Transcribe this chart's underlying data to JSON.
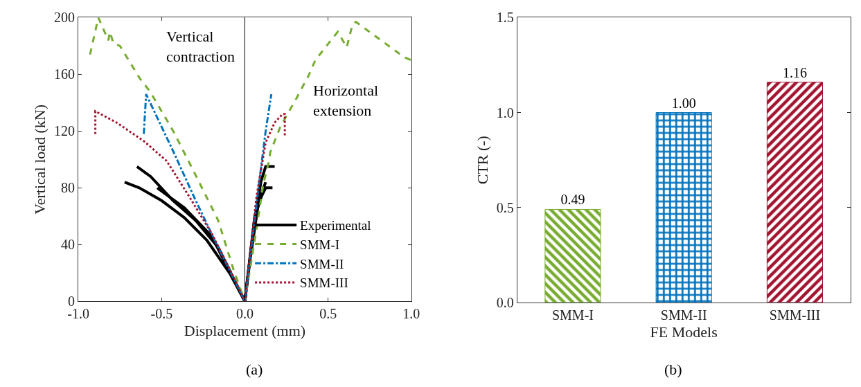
{
  "chart_data": [
    {
      "type": "line",
      "xlabel": "Displacement (mm)",
      "ylabel": "Vertical load (kN)",
      "xlim": [
        -1.0,
        1.0
      ],
      "xticks": [
        {
          "value": -1.0,
          "label": "-1.0"
        },
        {
          "value": -0.5,
          "label": "-0.5"
        },
        {
          "value": 0.0,
          "label": "0.0"
        },
        {
          "value": 0.5,
          "label": "0.5"
        },
        {
          "value": 1.0,
          "label": "1.0"
        }
      ],
      "ylim": [
        0,
        200
      ],
      "yticks": [
        0,
        40,
        80,
        120,
        160,
        200
      ],
      "legend": "bottom right",
      "marker": "none",
      "series": [
        {
          "name": "Experimental",
          "color": "#000000",
          "line_style": "solid",
          "x": [
            -0.648,
            -0.566,
            -0.431,
            -0.295,
            -0.16,
            0,
            0.057,
            0.098,
            0.125,
            0.179,
            null,
            -0.722,
            -0.634,
            -0.5,
            -0.364,
            -0.228,
            -0.092,
            0,
            0.03,
            0.084,
            0.125,
            null,
            -0.526,
            -0.364,
            -0.2,
            0,
            0.06,
            0.1,
            0.125,
            0.166
          ],
          "values": [
            95,
            88,
            71,
            57,
            38,
            0,
            57,
            85,
            95,
            95,
            null,
            84,
            80,
            71,
            59,
            43,
            20,
            0,
            28,
            71,
            84,
            null,
            80,
            66,
            46,
            0,
            60,
            74,
            80,
            80
          ]
        },
        {
          "name": "SMM-I",
          "color": "#77ac30",
          "line_style": "dashed",
          "x": [
            -0.93,
            -0.88,
            -0.82,
            -0.81,
            -0.79,
            -0.75,
            -0.63,
            -0.57,
            -0.43,
            -0.3,
            -0.16,
            -0.07,
            0,
            0.07,
            0.11,
            0.145,
            0.152,
            0.213,
            0.26,
            0.3,
            0.382,
            0.423,
            0.517,
            0.558,
            0.612,
            0.646,
            0.667,
            0.958,
            1.0
          ],
          "values": [
            174,
            200,
            184,
            190,
            182,
            180,
            157,
            148,
            120,
            90,
            57,
            23,
            0,
            51,
            82,
            99,
            105,
            123,
            133,
            141,
            159,
            170,
            184,
            190,
            179,
            195,
            197,
            172,
            170
          ]
        },
        {
          "name": "SMM-II",
          "color": "#0072bd",
          "line_style": "dashdot",
          "x": [
            -0.607,
            -0.593,
            -0.431,
            -0.295,
            -0.16,
            0,
            0.084,
            0.125,
            0.159
          ],
          "values": [
            118,
            146,
            106,
            71,
            38,
            0,
            82,
            120,
            146
          ]
        },
        {
          "name": "SMM-III",
          "color": "#a2142f",
          "line_style": "dotted",
          "x": [
            -0.898,
            -0.898,
            -0.77,
            -0.607,
            -0.47,
            -0.335,
            -0.2,
            -0.092,
            0,
            0.07,
            0.125,
            0.179,
            0.226,
            0.24,
            0.24
          ],
          "values": [
            118,
            134,
            126,
            113,
            99,
            74,
            48,
            23,
            0,
            74,
            112,
            126,
            132,
            132,
            117
          ]
        }
      ],
      "ref_lines": [
        {
          "axis": "x",
          "value": 0,
          "color": "#000000"
        }
      ],
      "annotations": [
        "Vertical contraction",
        "Horizontal extension",
        "(a)"
      ]
    },
    {
      "type": "bar",
      "xlabel": "FE Models",
      "ylabel": "CTR (-)",
      "categories": [
        "SMM-I",
        "SMM-II",
        "SMM-III"
      ],
      "values": [
        0.49,
        1.0,
        1.16
      ],
      "value_labels": [
        "0.49",
        "1.00",
        "1.16"
      ],
      "colors": [
        "#77ac30",
        "#0072bd",
        "#a2142f"
      ],
      "ylim": [
        0,
        1.5
      ],
      "yticks": [
        {
          "value": 0,
          "label": "0.0"
        },
        {
          "value": 0.5,
          "label": "0.5"
        },
        {
          "value": 1.0,
          "label": "1.0"
        },
        {
          "value": 1.5,
          "label": "1.5"
        }
      ],
      "legend": false,
      "annotations": [
        "(b)"
      ]
    }
  ]
}
